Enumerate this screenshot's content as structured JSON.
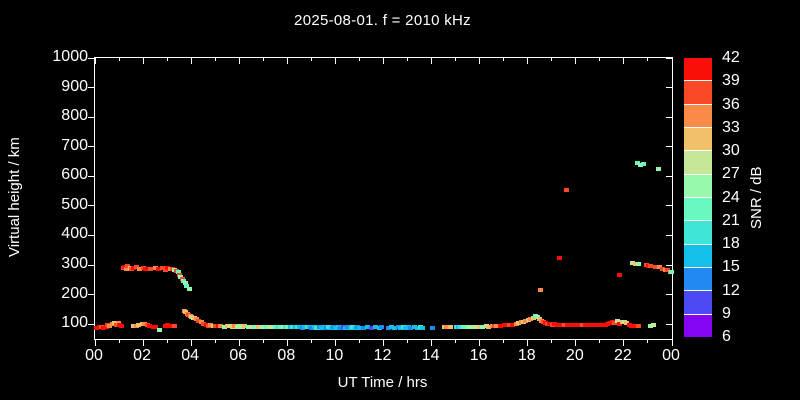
{
  "title": "2025-08-01. f = 2010 kHz",
  "axes": {
    "x_label": "UT Time / hrs",
    "y_label": "Virtual height / km",
    "colorbar_label": "SNR / dB"
  },
  "colors": {
    "background": "#000000",
    "text": "#ffffff",
    "axis": "#ffffff"
  },
  "chart_data": {
    "type": "scatter",
    "title": "2025-08-01. f = 2010 kHz",
    "xlabel": "UT Time / hrs",
    "ylabel": "Virtual height / km",
    "xlim": [
      0,
      24
    ],
    "ylim": [
      50,
      1000
    ],
    "grid": false,
    "x_major_hours": [
      0,
      2,
      4,
      6,
      8,
      10,
      12,
      14,
      16,
      18,
      20,
      22,
      24
    ],
    "x_major_labels": [
      "00",
      "02",
      "04",
      "06",
      "08",
      "10",
      "12",
      "14",
      "16",
      "18",
      "20",
      "22",
      "00"
    ],
    "x_minor_hours": [
      1,
      3,
      5,
      7,
      9,
      11,
      13,
      15,
      17,
      19,
      21,
      23
    ],
    "y_tick_km": [
      100,
      200,
      300,
      400,
      500,
      600,
      700,
      800,
      900,
      1000
    ],
    "y_tick_labels": [
      "100",
      "200",
      "300",
      "400",
      "500",
      "600",
      "700",
      "800",
      "900",
      "1000"
    ],
    "colorbar": {
      "label": "SNR / dB",
      "min": 6,
      "max": 42,
      "step": 3,
      "tick_labels_top_to_bottom": [
        "42",
        "39",
        "36",
        "33",
        "30",
        "27",
        "24",
        "21",
        "18",
        "15",
        "12",
        "9",
        "6"
      ],
      "colors_low_to_high": [
        "#8405f3",
        "#4b4af5",
        "#2389f2",
        "#12c0e8",
        "#3ee6d8",
        "#69f9c0",
        "#98f8ab",
        "#c6e698",
        "#f0c06a",
        "#fa8a48",
        "#f94927",
        "#fb0d08"
      ]
    },
    "points_time_height_snr": [
      [
        0.05,
        88,
        40
      ],
      [
        0.15,
        90,
        40
      ],
      [
        0.25,
        92,
        37
      ],
      [
        0.32,
        88,
        40
      ],
      [
        0.45,
        90,
        40
      ],
      [
        0.5,
        97,
        37
      ],
      [
        0.6,
        95,
        34
      ],
      [
        0.7,
        100,
        34
      ],
      [
        0.8,
        103,
        31
      ],
      [
        0.88,
        97,
        37
      ],
      [
        0.95,
        105,
        34
      ],
      [
        1.0,
        98,
        40
      ],
      [
        1.1,
        95,
        40
      ],
      [
        1.15,
        290,
        37
      ],
      [
        1.2,
        294,
        40
      ],
      [
        1.3,
        288,
        34
      ],
      [
        1.35,
        296,
        37
      ],
      [
        1.45,
        291,
        31
      ],
      [
        1.5,
        286,
        37
      ],
      [
        1.6,
        289,
        40
      ],
      [
        1.7,
        292,
        37
      ],
      [
        1.85,
        287,
        34
      ],
      [
        2.0,
        290,
        37
      ],
      [
        2.1,
        285,
        40
      ],
      [
        2.3,
        288,
        37
      ],
      [
        2.5,
        290,
        34
      ],
      [
        2.6,
        286,
        40
      ],
      [
        2.8,
        289,
        37
      ],
      [
        2.9,
        284,
        37
      ],
      [
        3.0,
        290,
        40
      ],
      [
        3.1,
        287,
        34
      ],
      [
        3.2,
        285,
        37
      ],
      [
        3.3,
        282,
        25
      ],
      [
        3.38,
        280,
        37
      ],
      [
        3.45,
        278,
        22
      ],
      [
        3.5,
        268,
        37
      ],
      [
        3.55,
        260,
        25
      ],
      [
        3.62,
        252,
        37
      ],
      [
        3.68,
        245,
        22
      ],
      [
        3.73,
        238,
        25
      ],
      [
        3.8,
        228,
        22
      ],
      [
        3.9,
        218,
        25
      ],
      [
        1.6,
        95,
        31
      ],
      [
        1.7,
        93,
        34
      ],
      [
        1.8,
        97,
        31
      ],
      [
        1.95,
        100,
        31
      ],
      [
        2.05,
        102,
        34
      ],
      [
        2.15,
        97,
        37
      ],
      [
        2.25,
        95,
        40
      ],
      [
        2.4,
        90,
        40
      ],
      [
        2.5,
        92,
        40
      ],
      [
        2.67,
        80,
        25
      ],
      [
        2.9,
        95,
        40
      ],
      [
        3.0,
        97,
        40
      ],
      [
        3.1,
        93,
        40
      ],
      [
        3.3,
        95,
        37
      ],
      [
        3.7,
        145,
        34
      ],
      [
        3.76,
        140,
        31
      ],
      [
        3.82,
        136,
        34
      ],
      [
        3.88,
        132,
        37
      ],
      [
        3.95,
        128,
        34
      ],
      [
        4.0,
        125,
        31
      ],
      [
        4.06,
        122,
        25
      ],
      [
        4.12,
        120,
        31
      ],
      [
        4.2,
        116,
        34
      ],
      [
        4.3,
        112,
        37
      ],
      [
        4.4,
        108,
        34
      ],
      [
        4.5,
        100,
        37
      ],
      [
        4.6,
        97,
        40
      ],
      [
        4.7,
        95,
        37
      ],
      [
        4.8,
        96,
        34
      ],
      [
        4.9,
        94,
        31
      ],
      [
        5.0,
        95,
        37
      ],
      [
        5.1,
        93,
        40
      ],
      [
        5.2,
        95,
        34
      ],
      [
        5.35,
        92,
        25
      ],
      [
        5.5,
        93,
        31
      ],
      [
        5.6,
        95,
        28
      ],
      [
        5.7,
        92,
        31
      ],
      [
        5.8,
        94,
        34
      ],
      [
        5.9,
        92,
        28
      ],
      [
        6.0,
        93,
        25
      ],
      [
        6.1,
        91,
        28
      ],
      [
        6.2,
        93,
        31
      ],
      [
        6.35,
        92,
        25
      ],
      [
        6.5,
        90,
        28
      ],
      [
        6.6,
        92,
        22
      ],
      [
        6.7,
        90,
        25
      ],
      [
        6.8,
        91,
        31
      ],
      [
        6.9,
        90,
        28
      ],
      [
        7.0,
        91,
        25
      ],
      [
        7.1,
        90,
        22
      ],
      [
        7.25,
        91,
        28
      ],
      [
        7.4,
        90,
        25
      ],
      [
        7.5,
        91,
        22
      ],
      [
        7.6,
        90,
        19
      ],
      [
        7.7,
        90,
        22
      ],
      [
        7.8,
        89,
        25
      ],
      [
        7.9,
        90,
        19
      ],
      [
        8.0,
        89,
        22
      ],
      [
        8.1,
        90,
        16
      ],
      [
        8.2,
        89,
        19
      ],
      [
        8.3,
        89,
        16
      ],
      [
        8.4,
        90,
        19
      ],
      [
        8.5,
        89,
        16
      ],
      [
        8.6,
        88,
        13
      ],
      [
        8.7,
        89,
        16
      ],
      [
        8.8,
        90,
        19
      ],
      [
        8.9,
        89,
        16
      ],
      [
        9.0,
        88,
        13
      ],
      [
        9.1,
        89,
        16
      ],
      [
        9.2,
        88,
        19
      ],
      [
        9.3,
        89,
        13
      ],
      [
        9.4,
        88,
        16
      ],
      [
        9.5,
        89,
        16
      ],
      [
        9.6,
        88,
        13
      ],
      [
        9.7,
        89,
        19
      ],
      [
        9.8,
        88,
        16
      ],
      [
        9.9,
        89,
        13
      ],
      [
        10.0,
        88,
        16
      ],
      [
        10.1,
        89,
        16
      ],
      [
        10.2,
        88,
        13
      ],
      [
        10.3,
        89,
        10
      ],
      [
        10.4,
        88,
        16
      ],
      [
        10.5,
        89,
        13
      ],
      [
        10.6,
        88,
        16
      ],
      [
        10.7,
        89,
        19
      ],
      [
        10.8,
        88,
        16
      ],
      [
        10.9,
        89,
        13
      ],
      [
        11.0,
        88,
        16
      ],
      [
        11.15,
        88,
        13
      ],
      [
        11.3,
        89,
        16
      ],
      [
        11.5,
        88,
        10
      ],
      [
        11.65,
        89,
        16
      ],
      [
        11.8,
        88,
        16
      ],
      [
        11.9,
        89,
        13
      ],
      [
        12.2,
        88,
        13
      ],
      [
        12.3,
        89,
        16
      ],
      [
        12.45,
        88,
        16
      ],
      [
        12.6,
        89,
        13
      ],
      [
        12.7,
        88,
        16
      ],
      [
        12.8,
        89,
        19
      ],
      [
        12.9,
        88,
        16
      ],
      [
        13.0,
        89,
        16
      ],
      [
        13.1,
        88,
        13
      ],
      [
        13.25,
        89,
        16
      ],
      [
        13.4,
        88,
        16
      ],
      [
        13.5,
        89,
        19
      ],
      [
        13.6,
        88,
        16
      ],
      [
        14.0,
        88,
        13
      ],
      [
        14.5,
        90,
        31
      ],
      [
        14.6,
        92,
        34
      ],
      [
        14.75,
        90,
        31
      ],
      [
        15.0,
        89,
        19
      ],
      [
        15.1,
        90,
        16
      ],
      [
        15.2,
        89,
        19
      ],
      [
        15.3,
        90,
        22
      ],
      [
        15.5,
        90,
        25
      ],
      [
        15.6,
        91,
        28
      ],
      [
        15.7,
        90,
        25
      ],
      [
        15.85,
        92,
        28
      ],
      [
        16.0,
        91,
        31
      ],
      [
        16.1,
        92,
        25
      ],
      [
        16.25,
        93,
        28
      ],
      [
        16.35,
        92,
        31
      ],
      [
        16.5,
        94,
        34
      ],
      [
        16.6,
        93,
        37
      ],
      [
        16.7,
        95,
        34
      ],
      [
        16.85,
        94,
        40
      ],
      [
        17.0,
        97,
        40
      ],
      [
        17.1,
        98,
        40
      ],
      [
        17.2,
        97,
        37
      ],
      [
        17.35,
        99,
        40
      ],
      [
        17.5,
        102,
        34
      ],
      [
        17.6,
        104,
        31
      ],
      [
        17.7,
        106,
        34
      ],
      [
        17.8,
        108,
        31
      ],
      [
        17.9,
        110,
        34
      ],
      [
        18.0,
        113,
        31
      ],
      [
        18.1,
        117,
        34
      ],
      [
        18.2,
        122,
        31
      ],
      [
        18.3,
        128,
        22
      ],
      [
        18.38,
        126,
        25
      ],
      [
        18.45,
        118,
        31
      ],
      [
        18.55,
        112,
        34
      ],
      [
        18.62,
        108,
        37
      ],
      [
        18.7,
        104,
        40
      ],
      [
        18.8,
        102,
        37
      ],
      [
        18.9,
        100,
        40
      ],
      [
        19.0,
        99,
        37
      ],
      [
        19.1,
        100,
        40
      ],
      [
        18.5,
        215,
        34
      ],
      [
        19.3,
        325,
        40
      ],
      [
        19.6,
        555,
        37
      ],
      [
        21.8,
        268,
        40
      ],
      [
        19.2,
        98,
        40
      ],
      [
        19.35,
        99,
        40
      ],
      [
        19.5,
        98,
        37
      ],
      [
        19.65,
        99,
        40
      ],
      [
        19.8,
        98,
        40
      ],
      [
        19.95,
        99,
        40
      ],
      [
        20.1,
        98,
        40
      ],
      [
        20.25,
        99,
        37
      ],
      [
        20.4,
        98,
        40
      ],
      [
        20.55,
        99,
        40
      ],
      [
        20.7,
        98,
        40
      ],
      [
        20.85,
        99,
        40
      ],
      [
        21.0,
        98,
        40
      ],
      [
        21.1,
        99,
        40
      ],
      [
        21.2,
        98,
        40
      ],
      [
        21.3,
        100,
        40
      ],
      [
        21.4,
        105,
        40
      ],
      [
        21.5,
        108,
        40
      ],
      [
        21.6,
        104,
        37
      ],
      [
        21.7,
        112,
        28
      ],
      [
        21.8,
        100,
        40
      ],
      [
        21.9,
        108,
        31
      ],
      [
        22.0,
        107,
        28
      ],
      [
        22.1,
        105,
        31
      ],
      [
        22.2,
        97,
        40
      ],
      [
        22.3,
        95,
        40
      ],
      [
        22.4,
        93,
        40
      ],
      [
        22.5,
        95,
        40
      ],
      [
        22.6,
        93,
        37
      ],
      [
        23.1,
        95,
        25
      ],
      [
        23.2,
        96,
        28
      ],
      [
        22.55,
        645,
        22
      ],
      [
        22.68,
        638,
        25
      ],
      [
        22.78,
        641,
        22
      ],
      [
        23.4,
        625,
        25
      ],
      [
        22.35,
        308,
        28
      ],
      [
        22.45,
        305,
        31
      ],
      [
        22.6,
        303,
        25
      ],
      [
        22.9,
        300,
        37
      ],
      [
        23.0,
        298,
        40
      ],
      [
        23.1,
        296,
        37
      ],
      [
        23.3,
        294,
        37
      ],
      [
        23.45,
        292,
        34
      ],
      [
        23.6,
        288,
        37
      ],
      [
        23.7,
        284,
        34
      ],
      [
        23.8,
        282,
        37
      ],
      [
        23.9,
        278,
        34
      ],
      [
        23.97,
        275,
        22
      ]
    ]
  }
}
